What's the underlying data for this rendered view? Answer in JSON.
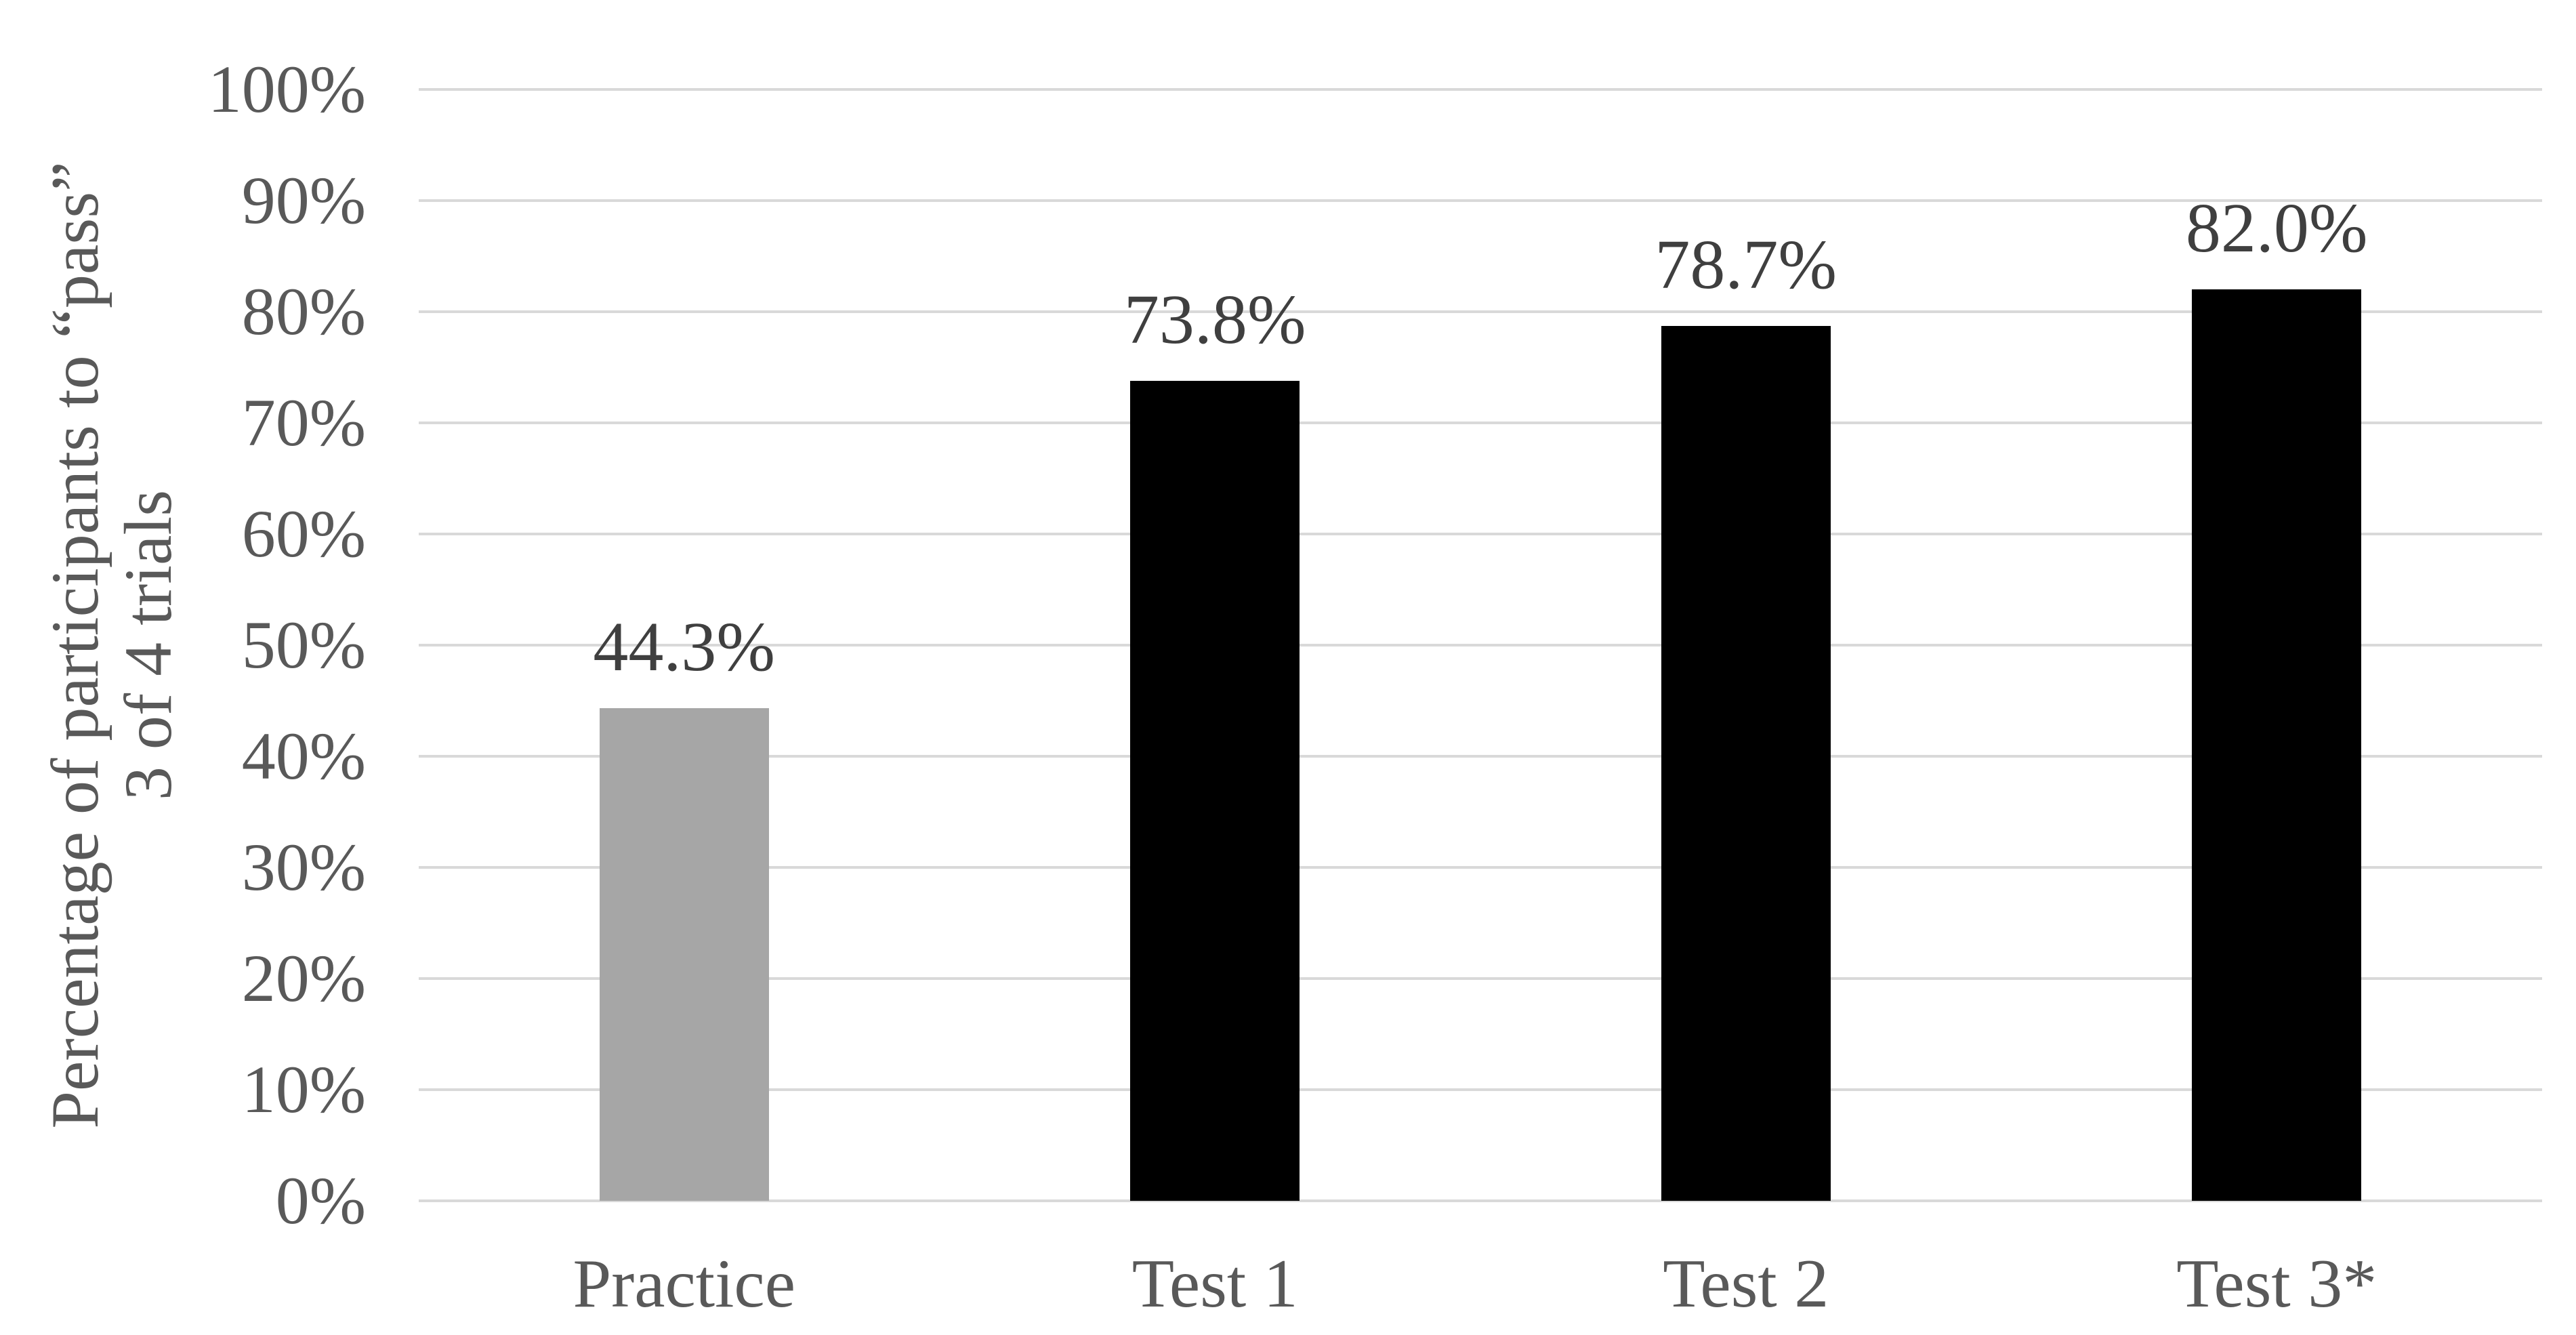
{
  "chart_data": {
    "type": "bar",
    "title": "",
    "categories": [
      "Practice",
      "Test 1",
      "Test 2",
      "Test 3*"
    ],
    "values": [
      44.3,
      73.8,
      78.7,
      82.0
    ],
    "data_labels": [
      "44.3%",
      "73.8%",
      "78.7%",
      "82.0%"
    ],
    "bar_colors": [
      "#a6a6a6",
      "#000000",
      "#000000",
      "#000000"
    ],
    "xlabel": "",
    "ylabel_line1": "Percentage of participants to “pass”",
    "ylabel_line2": "3 of 4 trials",
    "ylim": [
      0,
      100
    ],
    "ytick_step": 10,
    "ytick_labels": [
      "0%",
      "10%",
      "20%",
      "30%",
      "40%",
      "50%",
      "60%",
      "70%",
      "80%",
      "90%",
      "100%"
    ],
    "grid": true,
    "legend": false,
    "colors": {
      "gridline": "#d9d9d9",
      "axis_text": "#595959",
      "data_label_text": "#3f3f3f",
      "background": "#ffffff"
    }
  }
}
